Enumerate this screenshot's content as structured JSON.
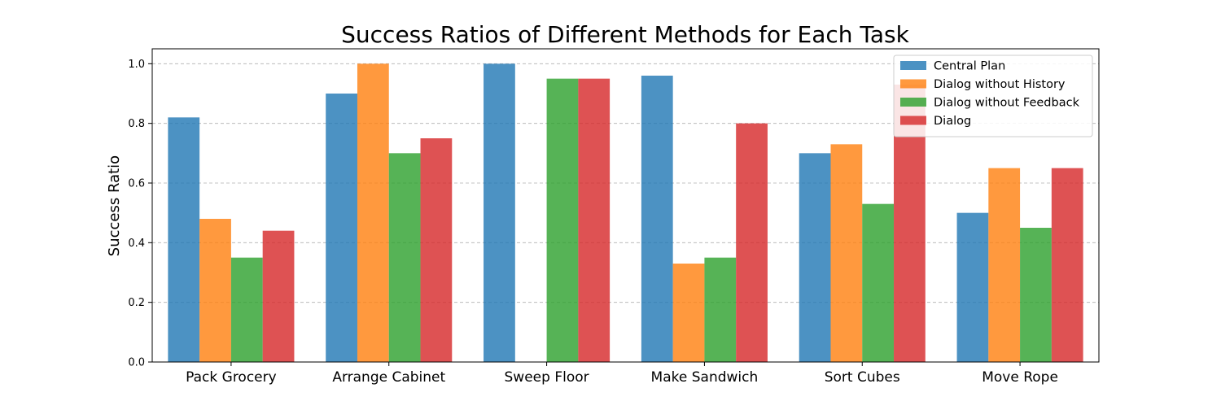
{
  "chart_data": {
    "type": "bar",
    "title": "Success Ratios of Different Methods for Each Task",
    "xlabel": "",
    "ylabel": "Success Ratio",
    "ylim": [
      0,
      1.05
    ],
    "yticks": [
      0.0,
      0.2,
      0.4,
      0.6,
      0.8,
      1.0
    ],
    "ytick_labels": [
      "0.0",
      "0.2",
      "0.4",
      "0.6",
      "0.8",
      "1.0"
    ],
    "grid": "y, dashed",
    "legend_position": "top-right",
    "categories": [
      "Pack Grocery",
      "Arrange Cabinet",
      "Sweep Floor",
      "Make Sandwich",
      "Sort Cubes",
      "Move Rope"
    ],
    "series": [
      {
        "name": "Central Plan",
        "color": "#1f77b4",
        "values": [
          0.82,
          0.9,
          1.0,
          0.96,
          0.7,
          0.5
        ]
      },
      {
        "name": "Dialog without History",
        "color": "#ff7f0e",
        "values": [
          0.48,
          1.0,
          0.0,
          0.33,
          0.73,
          0.65
        ]
      },
      {
        "name": "Dialog without Feedback",
        "color": "#2ca02c",
        "values": [
          0.35,
          0.7,
          0.95,
          0.35,
          0.53,
          0.45
        ]
      },
      {
        "name": "Dialog",
        "color": "#d62728",
        "values": [
          0.44,
          0.75,
          0.95,
          0.8,
          0.93,
          0.65
        ]
      }
    ]
  }
}
